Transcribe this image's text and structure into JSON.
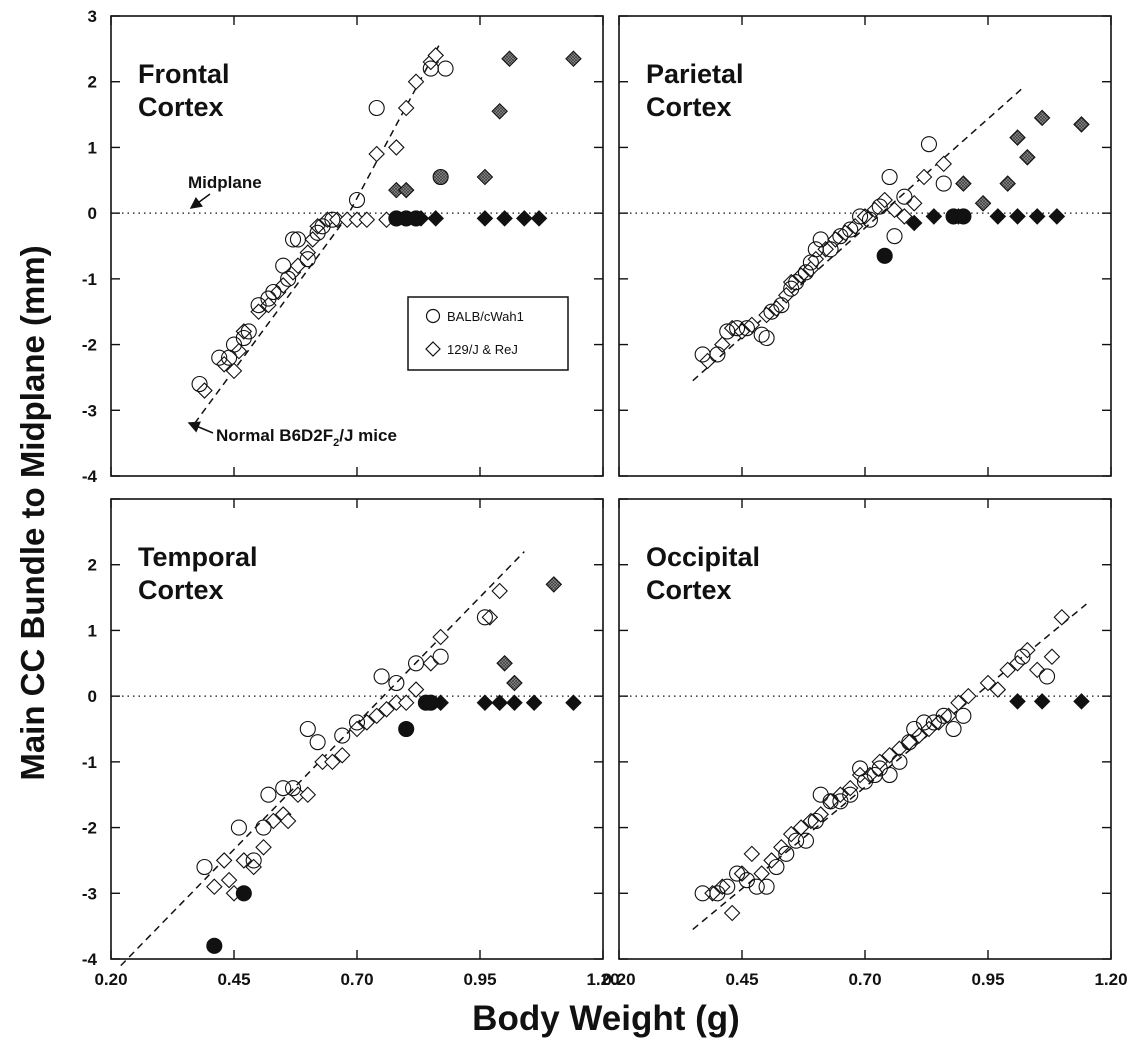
{
  "figure": {
    "ylabel": "Main CC Bundle to Midplane (mm)",
    "xlabel": "Body Weight (g)"
  },
  "legend": {
    "entries": [
      {
        "label": "BALB/cWah1",
        "marker": "circle"
      },
      {
        "label": "129/J & ReJ",
        "marker": "diamond"
      }
    ]
  },
  "annotations": {
    "midplane": "Midplane",
    "normal_prefix": "Normal B6D2F",
    "normal_sub": "2",
    "normal_suffix": "/J mice"
  },
  "colors": {
    "ink": "#111111",
    "shaded": "#888888",
    "background": "#ffffff"
  },
  "chart_data": [
    {
      "type": "scatter",
      "title_lines": [
        "Frontal",
        "Cortex"
      ],
      "xlim": [
        0.2,
        1.2
      ],
      "ylim": [
        -4,
        3
      ],
      "yticks": [
        "-4",
        "-3",
        "-2",
        "-1",
        "0",
        "1",
        "2",
        "3"
      ],
      "xticks": [],
      "midplane_y": 0,
      "regression": {
        "x": [
          0.37,
          0.68,
          0.87
        ],
        "y": [
          -3.2,
          -0.05,
          2.6
        ]
      },
      "circles_open": [
        [
          0.38,
          -2.6
        ],
        [
          0.42,
          -2.2
        ],
        [
          0.44,
          -2.2
        ],
        [
          0.45,
          -2.0
        ],
        [
          0.47,
          -1.9
        ],
        [
          0.48,
          -1.8
        ],
        [
          0.5,
          -1.4
        ],
        [
          0.52,
          -1.3
        ],
        [
          0.53,
          -1.2
        ],
        [
          0.55,
          -0.8
        ],
        [
          0.56,
          -1.0
        ],
        [
          0.57,
          -0.4
        ],
        [
          0.58,
          -0.4
        ],
        [
          0.6,
          -0.7
        ],
        [
          0.62,
          -0.3
        ],
        [
          0.63,
          -0.2
        ],
        [
          0.65,
          -0.1
        ],
        [
          0.7,
          0.2
        ],
        [
          0.74,
          1.6
        ],
        [
          0.85,
          2.2
        ],
        [
          0.88,
          2.2
        ]
      ],
      "diamonds_open": [
        [
          0.39,
          -2.7
        ],
        [
          0.43,
          -2.3
        ],
        [
          0.45,
          -2.4
        ],
        [
          0.46,
          -2.1
        ],
        [
          0.47,
          -1.8
        ],
        [
          0.5,
          -1.5
        ],
        [
          0.52,
          -1.4
        ],
        [
          0.54,
          -1.2
        ],
        [
          0.55,
          -1.1
        ],
        [
          0.57,
          -0.9
        ],
        [
          0.58,
          -0.8
        ],
        [
          0.6,
          -0.6
        ],
        [
          0.61,
          -0.4
        ],
        [
          0.62,
          -0.2
        ],
        [
          0.64,
          -0.1
        ],
        [
          0.66,
          -0.1
        ],
        [
          0.68,
          -0.1
        ],
        [
          0.7,
          -0.1
        ],
        [
          0.72,
          -0.1
        ],
        [
          0.74,
          0.9
        ],
        [
          0.76,
          -0.1
        ],
        [
          0.78,
          1.0
        ],
        [
          0.8,
          1.6
        ],
        [
          0.82,
          2.0
        ],
        [
          0.85,
          2.3
        ],
        [
          0.86,
          2.4
        ]
      ],
      "circles_filled": [
        [
          0.78,
          -0.08
        ],
        [
          0.8,
          -0.08
        ],
        [
          0.82,
          -0.08
        ]
      ],
      "diamonds_filled": [
        [
          0.83,
          -0.08
        ],
        [
          0.86,
          -0.08
        ],
        [
          0.96,
          -0.08
        ],
        [
          1.0,
          -0.08
        ],
        [
          1.04,
          -0.08
        ],
        [
          1.07,
          -0.08
        ]
      ],
      "circles_shaded": [
        [
          0.87,
          0.55
        ]
      ],
      "diamonds_shaded": [
        [
          0.78,
          0.35
        ],
        [
          0.8,
          0.35
        ],
        [
          0.96,
          0.55
        ],
        [
          0.99,
          1.55
        ],
        [
          1.01,
          2.35
        ],
        [
          1.14,
          2.35
        ]
      ]
    },
    {
      "type": "scatter",
      "title_lines": [
        "Parietal",
        "Cortex"
      ],
      "xlim": [
        0.2,
        1.2
      ],
      "ylim": [
        -4,
        3
      ],
      "yticks": [],
      "xticks": [],
      "midplane_y": 0,
      "regression": {
        "x": [
          0.35,
          1.02
        ],
        "y": [
          -2.55,
          1.9
        ]
      },
      "circles_open": [
        [
          0.37,
          -2.15
        ],
        [
          0.4,
          -2.15
        ],
        [
          0.42,
          -1.8
        ],
        [
          0.44,
          -1.75
        ],
        [
          0.46,
          -1.75
        ],
        [
          0.49,
          -1.85
        ],
        [
          0.5,
          -1.9
        ],
        [
          0.51,
          -1.5
        ],
        [
          0.53,
          -1.4
        ],
        [
          0.55,
          -1.15
        ],
        [
          0.56,
          -1.05
        ],
        [
          0.58,
          -0.9
        ],
        [
          0.59,
          -0.75
        ],
        [
          0.6,
          -0.55
        ],
        [
          0.61,
          -0.4
        ],
        [
          0.63,
          -0.55
        ],
        [
          0.65,
          -0.35
        ],
        [
          0.67,
          -0.25
        ],
        [
          0.69,
          -0.05
        ],
        [
          0.71,
          -0.1
        ],
        [
          0.73,
          0.1
        ],
        [
          0.75,
          0.55
        ],
        [
          0.76,
          -0.35
        ],
        [
          0.78,
          0.25
        ],
        [
          0.83,
          1.05
        ],
        [
          0.86,
          0.45
        ]
      ],
      "diamonds_open": [
        [
          0.38,
          -2.25
        ],
        [
          0.41,
          -2.0
        ],
        [
          0.43,
          -1.75
        ],
        [
          0.45,
          -1.8
        ],
        [
          0.47,
          -1.7
        ],
        [
          0.5,
          -1.55
        ],
        [
          0.52,
          -1.45
        ],
        [
          0.54,
          -1.25
        ],
        [
          0.55,
          -1.05
        ],
        [
          0.57,
          -0.95
        ],
        [
          0.59,
          -0.85
        ],
        [
          0.6,
          -0.7
        ],
        [
          0.62,
          -0.55
        ],
        [
          0.64,
          -0.4
        ],
        [
          0.66,
          -0.3
        ],
        [
          0.68,
          -0.2
        ],
        [
          0.7,
          -0.05
        ],
        [
          0.72,
          0.05
        ],
        [
          0.74,
          0.2
        ],
        [
          0.76,
          0.05
        ],
        [
          0.78,
          -0.05
        ],
        [
          0.8,
          0.15
        ],
        [
          0.82,
          0.55
        ],
        [
          0.86,
          0.75
        ]
      ],
      "circles_filled": [
        [
          0.74,
          -0.65
        ],
        [
          0.88,
          -0.05
        ],
        [
          0.9,
          -0.05
        ]
      ],
      "diamonds_filled": [
        [
          0.8,
          -0.15
        ],
        [
          0.84,
          -0.05
        ],
        [
          0.89,
          -0.05
        ],
        [
          0.97,
          -0.05
        ],
        [
          1.01,
          -0.05
        ],
        [
          1.05,
          -0.05
        ],
        [
          1.09,
          -0.05
        ]
      ],
      "circles_shaded": [],
      "diamonds_shaded": [
        [
          0.9,
          0.45
        ],
        [
          0.94,
          0.15
        ],
        [
          0.99,
          0.45
        ],
        [
          1.01,
          1.15
        ],
        [
          1.03,
          0.85
        ],
        [
          1.06,
          1.45
        ],
        [
          1.14,
          1.35
        ]
      ]
    },
    {
      "type": "scatter",
      "title_lines": [
        "Temporal",
        "Cortex"
      ],
      "xlim": [
        0.2,
        1.2
      ],
      "ylim": [
        -4,
        3
      ],
      "yticks": [
        "-4",
        "-3",
        "-2",
        "-1",
        "0",
        "1",
        "2"
      ],
      "xticks": [
        "0.20",
        "0.45",
        "0.70",
        "0.95",
        "1.20"
      ],
      "midplane_y": 0,
      "regression": {
        "x": [
          0.22,
          1.04
        ],
        "y": [
          -4.1,
          2.2
        ]
      },
      "circles_open": [
        [
          0.39,
          -2.6
        ],
        [
          0.46,
          -2.0
        ],
        [
          0.49,
          -2.5
        ],
        [
          0.51,
          -2.0
        ],
        [
          0.52,
          -1.5
        ],
        [
          0.55,
          -1.4
        ],
        [
          0.57,
          -1.4
        ],
        [
          0.6,
          -0.5
        ],
        [
          0.62,
          -0.7
        ],
        [
          0.67,
          -0.6
        ],
        [
          0.7,
          -0.4
        ],
        [
          0.75,
          0.3
        ],
        [
          0.78,
          0.2
        ],
        [
          0.82,
          0.5
        ],
        [
          0.87,
          0.6
        ],
        [
          0.96,
          1.2
        ]
      ],
      "diamonds_open": [
        [
          0.41,
          -2.9
        ],
        [
          0.43,
          -2.5
        ],
        [
          0.44,
          -2.8
        ],
        [
          0.45,
          -3.0
        ],
        [
          0.47,
          -2.5
        ],
        [
          0.49,
          -2.6
        ],
        [
          0.51,
          -2.3
        ],
        [
          0.53,
          -1.9
        ],
        [
          0.55,
          -1.8
        ],
        [
          0.56,
          -1.9
        ],
        [
          0.58,
          -1.5
        ],
        [
          0.6,
          -1.5
        ],
        [
          0.63,
          -1.0
        ],
        [
          0.65,
          -1.0
        ],
        [
          0.67,
          -0.9
        ],
        [
          0.7,
          -0.5
        ],
        [
          0.72,
          -0.4
        ],
        [
          0.74,
          -0.3
        ],
        [
          0.76,
          -0.2
        ],
        [
          0.78,
          -0.1
        ],
        [
          0.8,
          -0.1
        ],
        [
          0.82,
          0.1
        ],
        [
          0.85,
          0.5
        ],
        [
          0.87,
          0.9
        ],
        [
          0.97,
          1.2
        ],
        [
          0.99,
          1.6
        ]
      ],
      "circles_filled": [
        [
          0.41,
          -3.8
        ],
        [
          0.47,
          -3.0
        ],
        [
          0.8,
          -0.5
        ],
        [
          0.84,
          -0.1
        ],
        [
          0.85,
          -0.1
        ]
      ],
      "diamonds_filled": [
        [
          0.87,
          -0.1
        ],
        [
          0.96,
          -0.1
        ],
        [
          0.99,
          -0.1
        ],
        [
          1.02,
          -0.1
        ],
        [
          1.06,
          -0.1
        ],
        [
          1.14,
          -0.1
        ]
      ],
      "circles_shaded": [],
      "diamonds_shaded": [
        [
          1.0,
          0.5
        ],
        [
          1.02,
          0.2
        ],
        [
          1.1,
          1.7
        ]
      ]
    },
    {
      "type": "scatter",
      "title_lines": [
        "Occipital",
        "Cortex"
      ],
      "xlim": [
        0.2,
        1.2
      ],
      "ylim": [
        -4,
        3
      ],
      "yticks": [],
      "xticks": [
        "0.20",
        "0.45",
        "0.70",
        "0.95",
        "1.20"
      ],
      "midplane_y": 0,
      "regression": {
        "x": [
          0.35,
          1.15
        ],
        "y": [
          -3.55,
          1.4
        ]
      },
      "circles_open": [
        [
          0.37,
          -3.0
        ],
        [
          0.4,
          -3.0
        ],
        [
          0.42,
          -2.9
        ],
        [
          0.44,
          -2.7
        ],
        [
          0.46,
          -2.8
        ],
        [
          0.48,
          -2.9
        ],
        [
          0.5,
          -2.9
        ],
        [
          0.52,
          -2.6
        ],
        [
          0.54,
          -2.4
        ],
        [
          0.56,
          -2.2
        ],
        [
          0.58,
          -2.2
        ],
        [
          0.6,
          -1.9
        ],
        [
          0.61,
          -1.5
        ],
        [
          0.63,
          -1.6
        ],
        [
          0.65,
          -1.6
        ],
        [
          0.67,
          -1.5
        ],
        [
          0.69,
          -1.1
        ],
        [
          0.7,
          -1.3
        ],
        [
          0.72,
          -1.2
        ],
        [
          0.73,
          -1.1
        ],
        [
          0.75,
          -1.2
        ],
        [
          0.77,
          -1.0
        ],
        [
          0.79,
          -0.7
        ],
        [
          0.8,
          -0.5
        ],
        [
          0.82,
          -0.4
        ],
        [
          0.84,
          -0.4
        ],
        [
          0.86,
          -0.3
        ],
        [
          0.88,
          -0.5
        ],
        [
          0.9,
          -0.3
        ],
        [
          1.02,
          0.6
        ],
        [
          1.07,
          0.3
        ]
      ],
      "diamonds_open": [
        [
          0.39,
          -3.0
        ],
        [
          0.41,
          -2.9
        ],
        [
          0.43,
          -3.3
        ],
        [
          0.45,
          -2.7
        ],
        [
          0.47,
          -2.4
        ],
        [
          0.49,
          -2.7
        ],
        [
          0.51,
          -2.5
        ],
        [
          0.53,
          -2.3
        ],
        [
          0.55,
          -2.1
        ],
        [
          0.57,
          -2.0
        ],
        [
          0.59,
          -1.9
        ],
        [
          0.61,
          -1.8
        ],
        [
          0.63,
          -1.6
        ],
        [
          0.65,
          -1.5
        ],
        [
          0.67,
          -1.4
        ],
        [
          0.69,
          -1.2
        ],
        [
          0.71,
          -1.2
        ],
        [
          0.73,
          -1.0
        ],
        [
          0.75,
          -0.9
        ],
        [
          0.77,
          -0.8
        ],
        [
          0.79,
          -0.7
        ],
        [
          0.81,
          -0.6
        ],
        [
          0.83,
          -0.5
        ],
        [
          0.85,
          -0.4
        ],
        [
          0.87,
          -0.3
        ],
        [
          0.89,
          -0.1
        ],
        [
          0.91,
          0.0
        ],
        [
          0.95,
          0.2
        ],
        [
          0.97,
          0.1
        ],
        [
          0.99,
          0.4
        ],
        [
          1.01,
          0.5
        ],
        [
          1.03,
          0.7
        ],
        [
          1.05,
          0.4
        ],
        [
          1.08,
          0.6
        ],
        [
          1.1,
          1.2
        ]
      ],
      "circles_filled": [],
      "diamonds_filled": [
        [
          1.01,
          -0.08
        ],
        [
          1.06,
          -0.08
        ],
        [
          1.14,
          -0.08
        ]
      ],
      "circles_shaded": [],
      "diamonds_shaded": []
    }
  ]
}
